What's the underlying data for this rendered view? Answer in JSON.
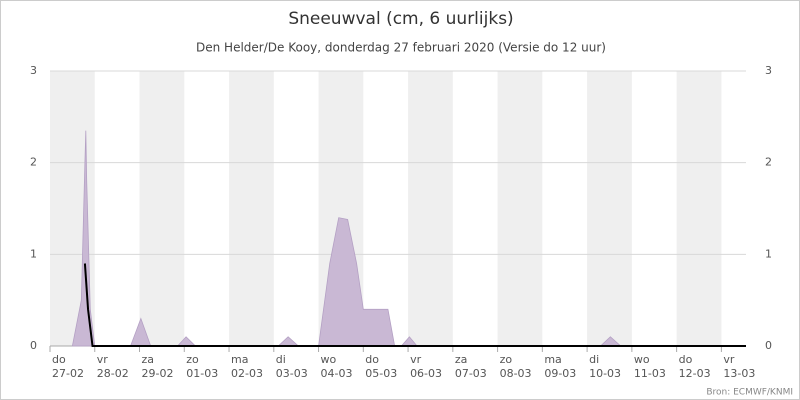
{
  "chart_data": {
    "type": "area",
    "title": "Sneeuwval (cm, 6 uurlijks)",
    "subtitle": "Den Helder/De Kooy, donderdag 27 februari 2020 (Versie do 12 uur)",
    "source": "Bron: ECMWF/KNMI",
    "xlim": [
      0,
      15.55
    ],
    "xticks": [
      {
        "value": 0,
        "label": "do\n27-02"
      },
      {
        "value": 1,
        "label": "vr\n28-02"
      },
      {
        "value": 2,
        "label": "za\n29-02"
      },
      {
        "value": 3,
        "label": "zo\n01-03"
      },
      {
        "value": 4,
        "label": "ma\n02-03"
      },
      {
        "value": 5,
        "label": "di\n03-03"
      },
      {
        "value": 6,
        "label": "wo\n04-03"
      },
      {
        "value": 7,
        "label": "do\n05-03"
      },
      {
        "value": 8,
        "label": "vr\n06-03"
      },
      {
        "value": 9,
        "label": "za\n07-03"
      },
      {
        "value": 10,
        "label": "zo\n08-03"
      },
      {
        "value": 11,
        "label": "ma\n09-03"
      },
      {
        "value": 12,
        "label": "di\n10-03"
      },
      {
        "value": 13,
        "label": "wo\n11-03"
      },
      {
        "value": 14,
        "label": "do\n12-03"
      },
      {
        "value": 15,
        "label": "vr\n13-03"
      }
    ],
    "ylim": [
      0,
      3
    ],
    "yticks": [
      0,
      1,
      2,
      3
    ],
    "y2lim": [
      0,
      3
    ],
    "y2ticks": [
      0,
      1,
      2,
      3
    ],
    "grid": true,
    "series": [
      {
        "kind": "area",
        "color": "#c9b8d4",
        "x": [
          0.5,
          0.7,
          0.78,
          0.8,
          0.82,
          0.9,
          1.0,
          1.8,
          2.03,
          2.25,
          2.85,
          3.04,
          3.25,
          5.1,
          5.32,
          5.55,
          6.0,
          6.25,
          6.45,
          6.65,
          6.85,
          7.0,
          7.55,
          7.7,
          7.85,
          8.03,
          8.2,
          12.3,
          12.52,
          12.75
        ],
        "values": [
          0,
          0.5,
          2.0,
          2.35,
          1.8,
          0.4,
          0,
          0,
          0.3,
          0,
          0,
          0.1,
          0,
          0,
          0.1,
          0,
          0,
          0.9,
          1.4,
          1.38,
          0.9,
          0.4,
          0.4,
          0,
          0,
          0.1,
          0,
          0,
          0.1,
          0
        ]
      },
      {
        "kind": "line",
        "color": "#000000",
        "x": [
          0.78,
          0.85,
          0.95,
          1.0,
          15.55
        ],
        "values": [
          0.9,
          0.4,
          0,
          0,
          0
        ]
      }
    ]
  }
}
